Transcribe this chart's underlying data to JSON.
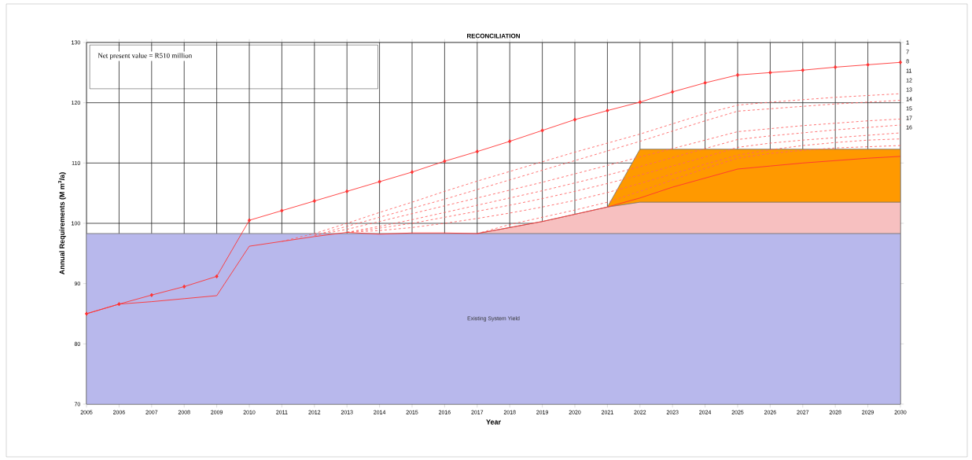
{
  "chart_data": {
    "type": "line",
    "title": "RECONCILIATION",
    "xlabel": "Year",
    "ylabel": "Annual Requirements (M m$^{3}$/a)",
    "x": [
      2005,
      2006,
      2007,
      2008,
      2009,
      2010,
      2011,
      2012,
      2013,
      2014,
      2015,
      2016,
      2017,
      2018,
      2019,
      2020,
      2021,
      2022,
      2023,
      2024,
      2025,
      2026,
      2027,
      2028,
      2029,
      2030
    ],
    "xlim": [
      2005,
      2030
    ],
    "xticks": [
      2005,
      2006,
      2007,
      2008,
      2009,
      2010,
      2011,
      2012,
      2013,
      2014,
      2015,
      2016,
      2017,
      2018,
      2019,
      2020,
      2021,
      2022,
      2023,
      2024,
      2025,
      2026,
      2027,
      2028,
      2029,
      2030
    ],
    "ylim": [
      70,
      130
    ],
    "yticks": [
      70,
      80,
      90,
      100,
      110,
      120,
      130
    ],
    "grid": true,
    "series": [
      {
        "type": "area",
        "color": "#ff9900",
        "values": [
          null,
          null,
          null,
          null,
          null,
          null,
          null,
          null,
          null,
          null,
          null,
          null,
          null,
          null,
          null,
          null,
          102.7,
          112.3,
          112.3,
          112.3,
          112.3,
          112.3,
          112.3,
          112.3,
          112.3,
          112.3
        ]
      },
      {
        "type": "area",
        "color": "#f7c0c0",
        "values": [
          null,
          null,
          null,
          null,
          null,
          null,
          null,
          null,
          null,
          null,
          null,
          null,
          98.3,
          99.3,
          100.3,
          101.5,
          102.7,
          103.5,
          103.5,
          103.5,
          103.5,
          103.5,
          103.5,
          103.5,
          103.5,
          103.5
        ]
      },
      {
        "type": "area",
        "name": "Existing System Yield",
        "color": "#b8b8ec",
        "values": [
          98.3,
          98.3,
          98.3,
          98.3,
          98.3,
          98.3,
          98.3,
          98.3,
          98.3,
          98.3,
          98.3,
          98.3,
          98.3,
          98.3,
          98.3,
          98.3,
          98.3,
          98.3,
          98.3,
          98.3,
          98.3,
          98.3,
          98.3,
          98.3,
          98.3,
          98.3
        ]
      },
      {
        "color": "#ff6666",
        "line_style": "dashed",
        "values": [
          null,
          null,
          null,
          null,
          null,
          null,
          97,
          98.3,
          100,
          101.8,
          103.5,
          105.3,
          107,
          108.6,
          110.2,
          111.8,
          113.3,
          114.8,
          116.5,
          118.2,
          119.6,
          120.1,
          120.5,
          120.9,
          121.2,
          121.5
        ]
      },
      {
        "color": "#ff6666",
        "line_style": "dashed",
        "values": [
          null,
          null,
          null,
          null,
          null,
          null,
          null,
          98,
          99.5,
          101,
          102.5,
          104,
          105.6,
          107.2,
          108.8,
          110.4,
          112,
          113.6,
          115.3,
          117,
          118.6,
          119,
          119.4,
          119.8,
          120.1,
          120.4
        ]
      },
      {
        "color": "#ff6666",
        "line_style": "dashed",
        "values": [
          null,
          null,
          null,
          null,
          null,
          null,
          null,
          98,
          99,
          100.3,
          101.6,
          102.9,
          104.2,
          105.5,
          106.8,
          108.2,
          109.6,
          111,
          112.4,
          113.8,
          115.2,
          115.7,
          116.2,
          116.6,
          117,
          117.3
        ]
      },
      {
        "color": "#ff6666",
        "line_style": "dashed",
        "values": [
          null,
          null,
          null,
          null,
          null,
          null,
          null,
          null,
          98.5,
          99.5,
          100.6,
          101.8,
          103,
          104.2,
          105.4,
          106.7,
          108,
          109.4,
          110.9,
          112.4,
          113.9,
          114.5,
          115,
          115.5,
          115.9,
          116.3
        ]
      },
      {
        "color": "#ff6666",
        "line_style": "dashed",
        "values": [
          null,
          null,
          null,
          null,
          null,
          null,
          null,
          null,
          98.5,
          99.2,
          100,
          101,
          102,
          103,
          104.1,
          105.3,
          106.6,
          108,
          109.5,
          111,
          112.6,
          113.3,
          113.8,
          114.2,
          114.6,
          115.0
        ]
      },
      {
        "color": "#ff6666",
        "line_style": "dashed",
        "values": [
          null,
          null,
          null,
          null,
          null,
          null,
          null,
          null,
          98.5,
          98.8,
          99.3,
          100,
          100.8,
          101.7,
          102.7,
          103.8,
          105.1,
          106.6,
          108.2,
          109.8,
          111.3,
          112.2,
          112.9,
          113.4,
          113.8,
          114.0
        ]
      },
      {
        "color": "#ff6666",
        "line_style": "dashed",
        "values": [
          null,
          null,
          null,
          null,
          null,
          null,
          null,
          null,
          null,
          null,
          null,
          null,
          98.3,
          99.8,
          101,
          102.2,
          103.5,
          105.3,
          107.2,
          109.1,
          110.8,
          111.6,
          112.1,
          112.5,
          112.7,
          112.9
        ]
      },
      {
        "color": "#ff3333",
        "line_style": "solid",
        "marker": "none",
        "values": [
          85,
          86.6,
          87,
          87.5,
          88,
          96.2,
          97,
          97.8,
          98.5,
          98.2,
          98.4,
          98.4,
          98.3,
          99.3,
          100.3,
          101.5,
          102.7,
          104.2,
          106,
          107.5,
          109,
          109.5,
          110,
          110.4,
          110.8,
          111.1
        ]
      },
      {
        "color": "#ff3333",
        "line_style": "solid",
        "marker": "diamond",
        "values": [
          85,
          86.6,
          88.1,
          89.5,
          91.2,
          100.5,
          102.1,
          103.7,
          105.3,
          106.9,
          108.5,
          110.3,
          111.9,
          113.6,
          115.4,
          117.2,
          118.7,
          120.1,
          121.8,
          123.3,
          124.6,
          125.0,
          125.4,
          125.9,
          126.3,
          126.7
        ]
      }
    ],
    "annotations": [
      "Net present value = R510 million",
      "1",
      "7",
      "8",
      "11",
      "12",
      "13",
      "14",
      "15",
      "17",
      "16"
    ]
  }
}
